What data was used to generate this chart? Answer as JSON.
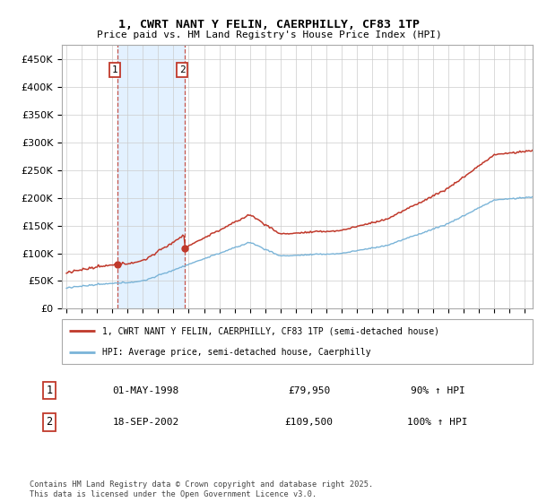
{
  "title": "1, CWRT NANT Y FELIN, CAERPHILLY, CF83 1TP",
  "subtitle": "Price paid vs. HM Land Registry's House Price Index (HPI)",
  "legend_line1": "1, CWRT NANT Y FELIN, CAERPHILLY, CF83 1TP (semi-detached house)",
  "legend_line2": "HPI: Average price, semi-detached house, Caerphilly",
  "footer": "Contains HM Land Registry data © Crown copyright and database right 2025.\nThis data is licensed under the Open Government Licence v3.0.",
  "transaction1_label": "1",
  "transaction1_date": "01-MAY-1998",
  "transaction1_price": "£79,950",
  "transaction1_hpi": "90% ↑ HPI",
  "transaction2_label": "2",
  "transaction2_date": "18-SEP-2002",
  "transaction2_price": "£109,500",
  "transaction2_hpi": "100% ↑ HPI",
  "hpi_color": "#7ab4d8",
  "price_color": "#c0392b",
  "shading_color": "#ddeeff",
  "vline_color": "#c0392b",
  "ylim": [
    0,
    475000
  ],
  "yticks": [
    0,
    50000,
    100000,
    150000,
    200000,
    250000,
    300000,
    350000,
    400000,
    450000
  ],
  "year_start": 1995,
  "year_end": 2025,
  "transaction1_year": 1998.33,
  "transaction2_year": 2002.72,
  "transaction1_price_val": 79950,
  "transaction2_price_val": 109500
}
